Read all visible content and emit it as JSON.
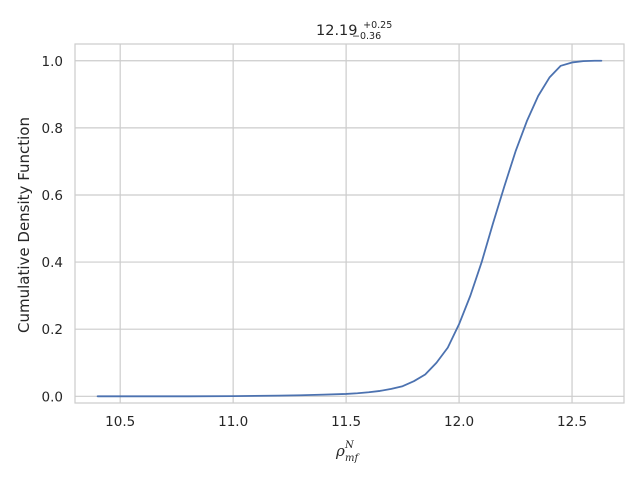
{
  "chart_data": {
    "type": "line",
    "title": {
      "main": "12.19",
      "sup": "+0.25",
      "sub": "−0.36"
    },
    "xlabel": {
      "base": "ρ",
      "sup": "N",
      "sub": "mf"
    },
    "ylabel": "Cumulative Density Function",
    "xlim": [
      10.3,
      12.73
    ],
    "ylim": [
      -0.02,
      1.05
    ],
    "xticks": [
      10.5,
      11.0,
      11.5,
      12.0,
      12.5
    ],
    "xtick_labels": [
      "10.5",
      "11.0",
      "11.5",
      "12.0",
      "12.5"
    ],
    "yticks": [
      0.0,
      0.2,
      0.4,
      0.6,
      0.8,
      1.0
    ],
    "ytick_labels": [
      "0.0",
      "0.2",
      "0.4",
      "0.6",
      "0.8",
      "1.0"
    ],
    "grid": true,
    "series": [
      {
        "color": "#4c72b0",
        "x": [
          10.4,
          10.6,
          10.8,
          11.0,
          11.2,
          11.3,
          11.4,
          11.5,
          11.55,
          11.6,
          11.65,
          11.7,
          11.75,
          11.8,
          11.85,
          11.9,
          11.95,
          12.0,
          12.05,
          12.1,
          12.15,
          12.2,
          12.25,
          12.3,
          12.35,
          12.4,
          12.45,
          12.5,
          12.55,
          12.6,
          12.63
        ],
        "y": [
          0.0,
          0.0,
          0.0,
          0.0005,
          0.002,
          0.003,
          0.005,
          0.007,
          0.009,
          0.012,
          0.016,
          0.022,
          0.03,
          0.045,
          0.065,
          0.1,
          0.145,
          0.215,
          0.3,
          0.4,
          0.515,
          0.625,
          0.73,
          0.82,
          0.895,
          0.95,
          0.985,
          0.995,
          0.999,
          1.0,
          1.0
        ]
      }
    ]
  }
}
